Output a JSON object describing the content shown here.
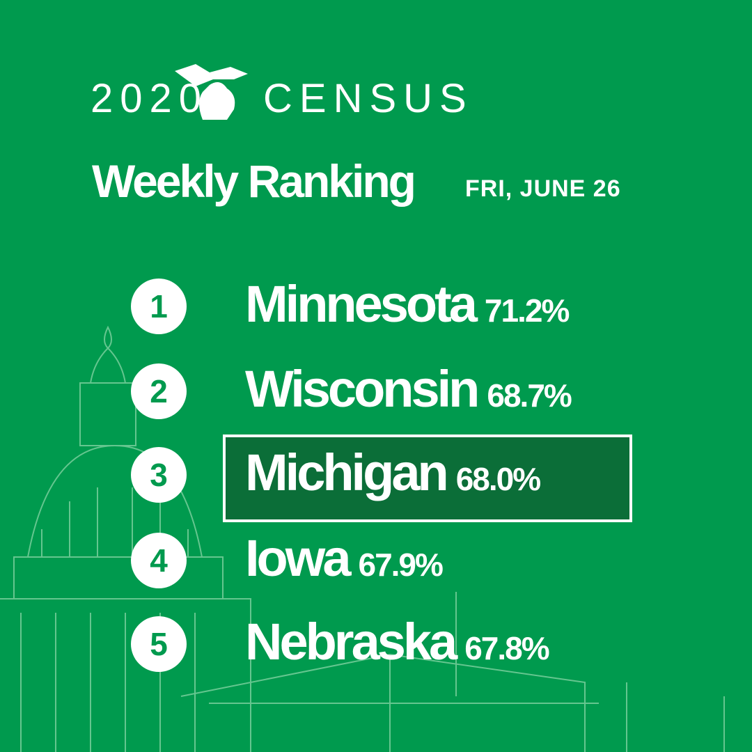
{
  "header": {
    "year": "2020",
    "word": "CENSUS",
    "title": "Weekly Ranking",
    "date": "FRI, JUNE 26"
  },
  "rankings": [
    {
      "rank": "1",
      "state": "Minnesota",
      "rate": "71.2%"
    },
    {
      "rank": "2",
      "state": "Wisconsin",
      "rate": "68.7%"
    },
    {
      "rank": "3",
      "state": "Michigan",
      "rate": "68.0%"
    },
    {
      "rank": "4",
      "state": "Iowa",
      "rate": "67.9%"
    },
    {
      "rank": "5",
      "state": "Nebraska",
      "rate": "67.8%"
    }
  ]
}
